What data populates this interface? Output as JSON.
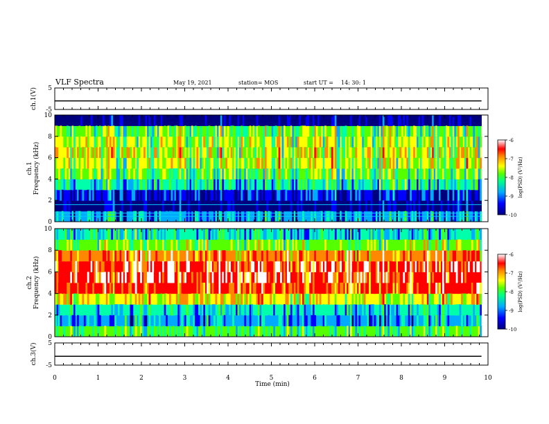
{
  "header": {
    "title": "VLF Spectra",
    "date": "May 19, 2021",
    "station": "station= MOS",
    "start_label": "start  UT =",
    "start_time": "14: 30: 1"
  },
  "chart_data": [
    {
      "type": "line",
      "panel": "ch1-waveform",
      "ylabel": "ch.1(V)",
      "ylim": [
        -5,
        5
      ],
      "yticks": [
        "5",
        "-5"
      ],
      "x": [
        0,
        10
      ],
      "series": [
        {
          "values": [
            -1,
            -1
          ]
        }
      ]
    },
    {
      "type": "heatmap",
      "panel": "ch1-spectrogram",
      "ylabel_top": "ch.1",
      "ylabel": "Frequency (kHz)",
      "ylim": [
        0,
        10
      ],
      "yticks": [
        "0",
        "2",
        "4",
        "6",
        "8",
        "10"
      ],
      "xlim": [
        0,
        9.85
      ],
      "colorbar": {
        "label": "log(PSD) (V²/Hz)",
        "ticks": [
          "-6",
          "-7",
          "-8",
          "-9",
          "-10"
        ],
        "range": [
          -10,
          -6
        ]
      },
      "levels_by_frequency": [
        {
          "f": 0.5,
          "level": -8.8
        },
        {
          "f": 1.5,
          "level": -9.9
        },
        {
          "f": 2.5,
          "level": -9.4
        },
        {
          "f": 3.5,
          "level": -8.4
        },
        {
          "f": 4.5,
          "level": -7.9
        },
        {
          "f": 5.5,
          "level": -7.6
        },
        {
          "f": 6.5,
          "level": -7.5
        },
        {
          "f": 7.5,
          "level": -7.6
        },
        {
          "f": 8.5,
          "level": -7.9
        },
        {
          "f": 9.5,
          "level": -10
        }
      ]
    },
    {
      "type": "heatmap",
      "panel": "ch2-spectrogram",
      "ylabel_top": "ch.2",
      "ylabel": "Frequency (kHz)",
      "ylim": [
        0,
        10
      ],
      "yticks": [
        "0",
        "2",
        "4",
        "6",
        "8",
        "10"
      ],
      "xlim": [
        0,
        9.85
      ],
      "colorbar": {
        "label": "log(PSD) (V²/Hz)",
        "ticks": [
          "-6",
          "-7",
          "-8",
          "-9",
          "-10"
        ],
        "range": [
          -10,
          -6
        ]
      },
      "levels_by_frequency": [
        {
          "f": 0.5,
          "level": -8.2
        },
        {
          "f": 1.5,
          "level": -8.9
        },
        {
          "f": 2.5,
          "level": -8.7
        },
        {
          "f": 3.5,
          "level": -7.4
        },
        {
          "f": 4.5,
          "level": -6.7
        },
        {
          "f": 5.5,
          "level": -6.4
        },
        {
          "f": 6.5,
          "level": -6.4
        },
        {
          "f": 7.5,
          "level": -6.8
        },
        {
          "f": 8.5,
          "level": -7.8
        },
        {
          "f": 9.5,
          "level": -8.6
        }
      ]
    },
    {
      "type": "line",
      "panel": "ch3-waveform",
      "ylabel": "ch.3(V)",
      "ylim": [
        -5,
        5
      ],
      "yticks": [
        "5",
        "-5"
      ],
      "x": [
        0,
        10
      ],
      "series": [
        {
          "values": [
            -1,
            -1
          ]
        }
      ]
    }
  ],
  "time_axis": {
    "label": "Time  (min)",
    "ticks": [
      "0",
      "1",
      "2",
      "3",
      "4",
      "5",
      "6",
      "7",
      "8",
      "9",
      "10"
    ],
    "range": [
      0,
      10
    ]
  },
  "colormap": [
    "#00007f",
    "#0000ff",
    "#00aaff",
    "#00ffaa",
    "#55ff00",
    "#ffff00",
    "#ff8800",
    "#ff0000",
    "#ffffff"
  ]
}
